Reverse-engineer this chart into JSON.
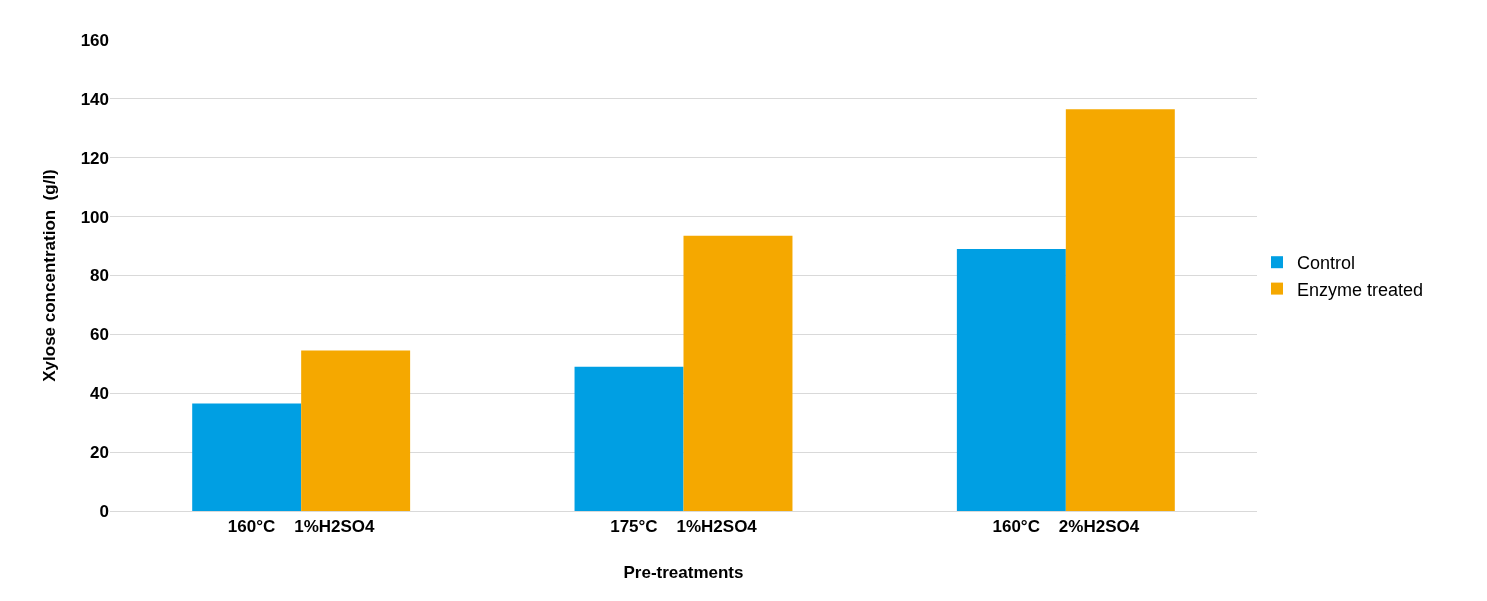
{
  "chart_data": {
    "type": "bar",
    "xlabel": "Pre-treatments",
    "ylabel": "Xylose concentration  (g/l)",
    "categories": [
      "160°C    1%H2SO4",
      "175°C    1%H2SO4",
      "160°C    2%H2SO4"
    ],
    "series": [
      {
        "name": "Control",
        "color": "#009fe3",
        "values": [
          36.5,
          49,
          89
        ]
      },
      {
        "name": "Enzyme treated",
        "color": "#f5a800",
        "values": [
          54.5,
          93.5,
          136.5
        ]
      }
    ],
    "ylim": [
      0,
      160
    ],
    "yticks": [
      0,
      20,
      40,
      60,
      80,
      100,
      120,
      140,
      160
    ],
    "grid": "y",
    "legend": "right"
  }
}
